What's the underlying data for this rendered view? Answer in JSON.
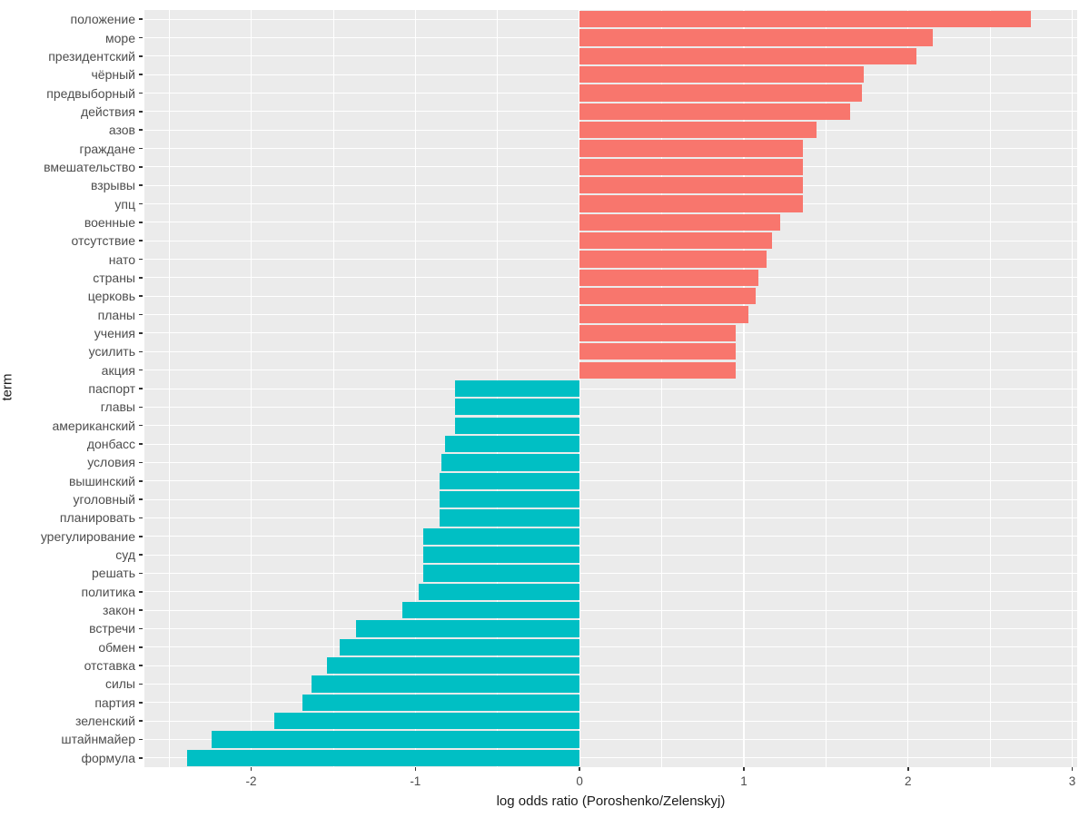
{
  "figure": {
    "background": "#FFFFFF",
    "panel_background": "#EBEBEB",
    "grid_color": "#FFFFFF",
    "tick_mark_color": "#333333",
    "tick_label_color": "#4D4D4D",
    "axis_title_color": "#1A1A1A"
  },
  "chart_data": {
    "type": "bar",
    "orientation": "horizontal",
    "title": "",
    "xlabel": "log odds ratio (Poroshenko/Zelenskyj)",
    "ylabel": "term",
    "xlim": [
      -2.65,
      3.03
    ],
    "grid": "on",
    "legend": "none",
    "colors": {
      "positive": "#F8766D",
      "negative": "#00BFC4"
    },
    "x_ticks": [
      {
        "value": -2,
        "label": "-2"
      },
      {
        "value": -1,
        "label": "-1"
      },
      {
        "value": 0,
        "label": "0"
      },
      {
        "value": 1,
        "label": "1"
      },
      {
        "value": 2,
        "label": "2"
      },
      {
        "value": 3,
        "label": "3"
      }
    ],
    "x_minor_gridlines": [
      -2.5,
      -1.5,
      -0.5,
      0.5,
      1.5,
      2.5
    ],
    "bars": [
      {
        "term": "положение",
        "value": 2.75
      },
      {
        "term": "море",
        "value": 2.15
      },
      {
        "term": "президентский",
        "value": 2.05
      },
      {
        "term": "чёрный",
        "value": 1.73
      },
      {
        "term": "предвыборный",
        "value": 1.72
      },
      {
        "term": "действия",
        "value": 1.65
      },
      {
        "term": "азов",
        "value": 1.44
      },
      {
        "term": "граждане",
        "value": 1.36
      },
      {
        "term": "вмешательство",
        "value": 1.36
      },
      {
        "term": "взрывы",
        "value": 1.36
      },
      {
        "term": "упц",
        "value": 1.36
      },
      {
        "term": "военные",
        "value": 1.22
      },
      {
        "term": "отсутствие",
        "value": 1.17
      },
      {
        "term": "нато",
        "value": 1.14
      },
      {
        "term": "страны",
        "value": 1.09
      },
      {
        "term": "церковь",
        "value": 1.07
      },
      {
        "term": "планы",
        "value": 1.03
      },
      {
        "term": "учения",
        "value": 0.95
      },
      {
        "term": "усилить",
        "value": 0.95
      },
      {
        "term": "акция",
        "value": 0.95
      },
      {
        "term": "паспорт",
        "value": -0.76
      },
      {
        "term": "главы",
        "value": -0.76
      },
      {
        "term": "американский",
        "value": -0.76
      },
      {
        "term": "донбасс",
        "value": -0.82
      },
      {
        "term": "условия",
        "value": -0.84
      },
      {
        "term": "вышинский",
        "value": -0.85
      },
      {
        "term": "уголовный",
        "value": -0.85
      },
      {
        "term": "планировать",
        "value": -0.85
      },
      {
        "term": "урегулирование",
        "value": -0.95
      },
      {
        "term": "суд",
        "value": -0.95
      },
      {
        "term": "решать",
        "value": -0.95
      },
      {
        "term": "политика",
        "value": -0.98
      },
      {
        "term": "закон",
        "value": -1.08
      },
      {
        "term": "встречи",
        "value": -1.36
      },
      {
        "term": "обмен",
        "value": -1.46
      },
      {
        "term": "отставка",
        "value": -1.54
      },
      {
        "term": "силы",
        "value": -1.63
      },
      {
        "term": "партия",
        "value": -1.69
      },
      {
        "term": "зеленский",
        "value": -1.86
      },
      {
        "term": "штайнмайер",
        "value": -2.24
      },
      {
        "term": "формула",
        "value": -2.39
      }
    ]
  }
}
